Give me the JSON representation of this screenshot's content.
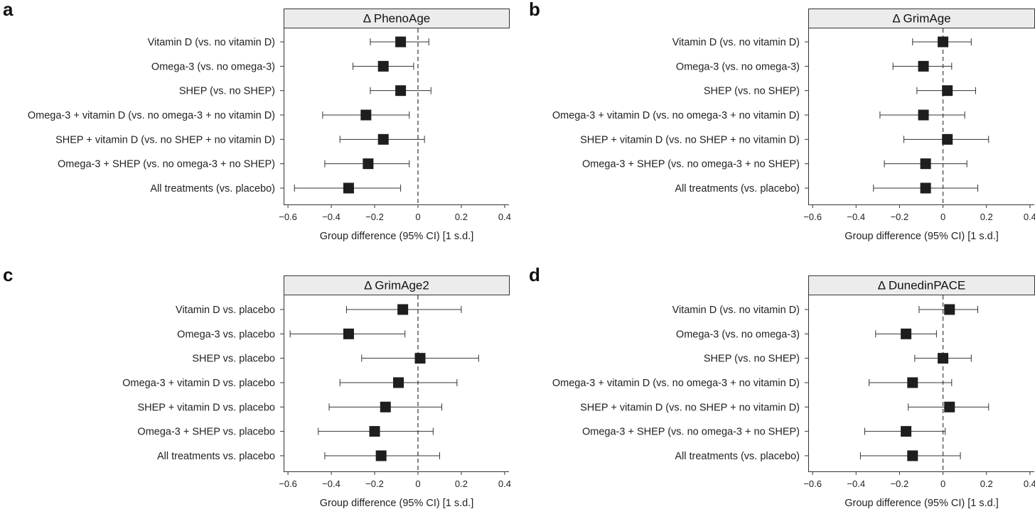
{
  "chart_data": [
    {
      "type": "forest",
      "panel": "a",
      "title": "Δ PhenoAge",
      "xlabel": "Group difference (95% CI) [1 s.d.]",
      "xlim": [
        -0.62,
        0.42
      ],
      "xticks": [
        "−0.6",
        "−0.4",
        "−0.2",
        "0",
        "0.2",
        "0.4"
      ],
      "xtick_values": [
        -0.6,
        -0.4,
        -0.2,
        0,
        0.2,
        0.4
      ],
      "reference_line": 0,
      "rows": [
        {
          "label": "Vitamin D (vs. no vitamin D)",
          "estimate": -0.08,
          "lower": -0.22,
          "upper": 0.05
        },
        {
          "label": "Omega-3 (vs. no omega-3)",
          "estimate": -0.16,
          "lower": -0.3,
          "upper": -0.02
        },
        {
          "label": "SHEP (vs. no SHEP)",
          "estimate": -0.08,
          "lower": -0.22,
          "upper": 0.06
        },
        {
          "label": "Omega-3 + vitamin D (vs. no omega-3 + no vitamin D)",
          "estimate": -0.24,
          "lower": -0.44,
          "upper": -0.04
        },
        {
          "label": "SHEP + vitamin D (vs. no SHEP + no vitamin D)",
          "estimate": -0.16,
          "lower": -0.36,
          "upper": 0.03
        },
        {
          "label": "Omega-3 + SHEP (vs. no omega-3 + no SHEP)",
          "estimate": -0.23,
          "lower": -0.43,
          "upper": -0.04
        },
        {
          "label": "All treatments (vs. placebo)",
          "estimate": -0.32,
          "lower": -0.57,
          "upper": -0.08
        }
      ]
    },
    {
      "type": "forest",
      "panel": "b",
      "title": "Δ GrimAge",
      "xlabel": "Group difference (95% CI) [1 s.d.]",
      "xlim": [
        -0.62,
        0.42
      ],
      "xticks": [
        "−0.6",
        "−0.4",
        "−0.2",
        "0",
        "0.2",
        "0.4"
      ],
      "xtick_values": [
        -0.6,
        -0.4,
        -0.2,
        0,
        0.2,
        0.4
      ],
      "reference_line": 0,
      "rows": [
        {
          "label": "Vitamin D (vs. no vitamin D)",
          "estimate": 0.0,
          "lower": -0.14,
          "upper": 0.13
        },
        {
          "label": "Omega-3 (vs. no omega-3)",
          "estimate": -0.09,
          "lower": -0.23,
          "upper": 0.04
        },
        {
          "label": "SHEP (vs. no SHEP)",
          "estimate": 0.02,
          "lower": -0.12,
          "upper": 0.15
        },
        {
          "label": "Omega-3 + vitamin D (vs. no omega-3 + no vitamin D)",
          "estimate": -0.09,
          "lower": -0.29,
          "upper": 0.1
        },
        {
          "label": "SHEP + vitamin D (vs. no SHEP + no vitamin D)",
          "estimate": 0.02,
          "lower": -0.18,
          "upper": 0.21
        },
        {
          "label": "Omega-3 + SHEP (vs. no omega-3 + no SHEP)",
          "estimate": -0.08,
          "lower": -0.27,
          "upper": 0.11
        },
        {
          "label": "All treatments (vs. placebo)",
          "estimate": -0.08,
          "lower": -0.32,
          "upper": 0.16
        }
      ]
    },
    {
      "type": "forest",
      "panel": "c",
      "title": "Δ GrimAge2",
      "xlabel": "Group difference (95% CI) [1 s.d.]",
      "xlim": [
        -0.62,
        0.42
      ],
      "xticks": [
        "−0.6",
        "−0.4",
        "−0.2",
        "0",
        "0.2",
        "0.4"
      ],
      "xtick_values": [
        -0.6,
        -0.4,
        -0.2,
        0,
        0.2,
        0.4
      ],
      "reference_line": 0,
      "rows": [
        {
          "label": "Vitamin D vs. placebo",
          "estimate": -0.07,
          "lower": -0.33,
          "upper": 0.2
        },
        {
          "label": "Omega-3 vs. placebo",
          "estimate": -0.32,
          "lower": -0.59,
          "upper": -0.06
        },
        {
          "label": "SHEP vs. placebo",
          "estimate": 0.01,
          "lower": -0.26,
          "upper": 0.28
        },
        {
          "label": "Omega-3 + vitamin D vs. placebo",
          "estimate": -0.09,
          "lower": -0.36,
          "upper": 0.18
        },
        {
          "label": "SHEP + vitamin D vs. placebo",
          "estimate": -0.15,
          "lower": -0.41,
          "upper": 0.11
        },
        {
          "label": "Omega-3 + SHEP vs. placebo",
          "estimate": -0.2,
          "lower": -0.46,
          "upper": 0.07
        },
        {
          "label": "All treatments vs. placebo",
          "estimate": -0.17,
          "lower": -0.43,
          "upper": 0.1
        }
      ]
    },
    {
      "type": "forest",
      "panel": "d",
      "title": "Δ DunedinPACE",
      "xlabel": "Group difference (95% CI) [1 s.d.]",
      "xlim": [
        -0.62,
        0.42
      ],
      "xticks": [
        "−0.6",
        "−0.4",
        "−0.2",
        "0",
        "0.2",
        "0.4"
      ],
      "xtick_values": [
        -0.6,
        -0.4,
        -0.2,
        0,
        0.2,
        0.4
      ],
      "reference_line": 0,
      "rows": [
        {
          "label": "Vitamin D (vs. no vitamin D)",
          "estimate": 0.03,
          "lower": -0.11,
          "upper": 0.16
        },
        {
          "label": "Omega-3 (vs. no omega-3)",
          "estimate": -0.17,
          "lower": -0.31,
          "upper": -0.03
        },
        {
          "label": "SHEP (vs. no SHEP)",
          "estimate": 0.0,
          "lower": -0.13,
          "upper": 0.13
        },
        {
          "label": "Omega-3 + vitamin D (vs. no omega-3 + no vitamin D)",
          "estimate": -0.14,
          "lower": -0.34,
          "upper": 0.04
        },
        {
          "label": "SHEP + vitamin D (vs. no SHEP + no vitamin D)",
          "estimate": 0.03,
          "lower": -0.16,
          "upper": 0.21
        },
        {
          "label": "Omega-3 + SHEP (vs. no omega-3 + no SHEP)",
          "estimate": -0.17,
          "lower": -0.36,
          "upper": 0.01
        },
        {
          "label": "All treatments (vs. placebo)",
          "estimate": -0.14,
          "lower": -0.38,
          "upper": 0.08
        }
      ]
    }
  ],
  "colors": {
    "marker": "#1e1e1e",
    "ci_line": "#333333",
    "reference_line": "#666666",
    "strip_fill": "#ececec",
    "axis": "#333333"
  }
}
